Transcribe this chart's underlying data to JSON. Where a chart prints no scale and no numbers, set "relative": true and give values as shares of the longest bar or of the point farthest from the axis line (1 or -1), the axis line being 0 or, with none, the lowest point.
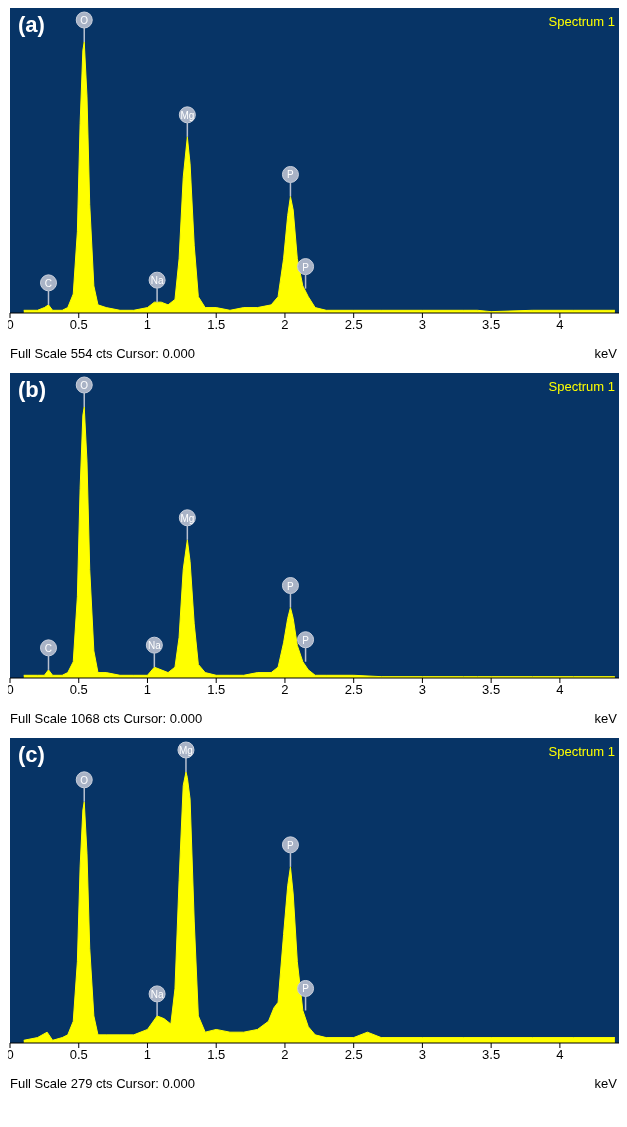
{
  "chart_data": [
    {
      "type": "area",
      "title": "(a)",
      "xlabel": "keV",
      "relative": true,
      "xlim": [
        0,
        4.43
      ],
      "xticks": [
        0,
        0.5,
        1,
        1.5,
        2,
        2.5,
        3,
        3.5,
        4
      ],
      "grid": false,
      "legend": false,
      "series": [
        {
          "color": "#ffff00",
          "x": [
            0.1,
            0.2,
            0.25,
            0.28,
            0.31,
            0.38,
            0.42,
            0.46,
            0.49,
            0.51,
            0.53,
            0.54,
            0.56,
            0.58,
            0.61,
            0.64,
            0.7,
            0.8,
            0.9,
            1.0,
            1.05,
            1.1,
            1.15,
            1.2,
            1.23,
            1.26,
            1.29,
            1.31,
            1.34,
            1.37,
            1.42,
            1.5,
            1.6,
            1.7,
            1.8,
            1.9,
            1.95,
            1.99,
            2.02,
            2.04,
            2.06,
            2.09,
            2.13,
            2.17,
            2.22,
            2.3,
            2.5,
            2.7,
            3.0,
            3.3,
            3.4,
            3.5,
            3.8,
            4.1,
            4.4
          ],
          "values": [
            0.01,
            0.01,
            0.02,
            0.03,
            0.01,
            0.01,
            0.02,
            0.07,
            0.3,
            0.7,
            0.97,
            1,
            0.8,
            0.4,
            0.1,
            0.03,
            0.02,
            0.01,
            0.01,
            0.02,
            0.04,
            0.04,
            0.03,
            0.05,
            0.2,
            0.5,
            0.65,
            0.55,
            0.25,
            0.06,
            0.02,
            0.02,
            0.01,
            0.02,
            0.02,
            0.03,
            0.06,
            0.2,
            0.36,
            0.43,
            0.38,
            0.2,
            0.1,
            0.06,
            0.02,
            0.01,
            0.01,
            0.01,
            0.01,
            0.01,
            0.01,
            0.005,
            0.01,
            0.01,
            0.01
          ]
        }
      ],
      "annotations": [
        "Spectrum 1",
        "Full Scale 554 cts Cursor: 0.000",
        {
          "text": "C",
          "x": 0.28,
          "y": 0.03
        },
        {
          "text": "O",
          "x": 0.54,
          "y": 1
        },
        {
          "text": "Na",
          "x": 1.07,
          "y": 0.04
        },
        {
          "text": "Mg",
          "x": 1.29,
          "y": 0.65
        },
        {
          "text": "P",
          "x": 2.04,
          "y": 0.43
        },
        {
          "text": "P",
          "x": 2.15,
          "y": 0.09
        }
      ]
    },
    {
      "type": "area",
      "title": "(b)",
      "xlabel": "keV",
      "relative": true,
      "xlim": [
        0,
        4.43
      ],
      "xticks": [
        0,
        0.5,
        1,
        1.5,
        2,
        2.5,
        3,
        3.5,
        4
      ],
      "grid": false,
      "legend": false,
      "series": [
        {
          "color": "#ffff00",
          "x": [
            0.1,
            0.2,
            0.25,
            0.28,
            0.31,
            0.38,
            0.42,
            0.46,
            0.49,
            0.51,
            0.53,
            0.54,
            0.56,
            0.58,
            0.61,
            0.64,
            0.7,
            0.8,
            0.9,
            1.0,
            1.05,
            1.1,
            1.15,
            1.2,
            1.23,
            1.26,
            1.29,
            1.31,
            1.34,
            1.37,
            1.42,
            1.5,
            1.6,
            1.7,
            1.8,
            1.9,
            1.95,
            1.99,
            2.02,
            2.04,
            2.06,
            2.09,
            2.13,
            2.17,
            2.22,
            2.3,
            2.5,
            2.7,
            3.0,
            3.3,
            3.4,
            3.5,
            3.8,
            4.1,
            4.4
          ],
          "values": [
            0.01,
            0.01,
            0.01,
            0.03,
            0.01,
            0.01,
            0.02,
            0.06,
            0.3,
            0.7,
            0.97,
            1,
            0.8,
            0.4,
            0.1,
            0.02,
            0.02,
            0.01,
            0.01,
            0.01,
            0.04,
            0.03,
            0.02,
            0.04,
            0.15,
            0.4,
            0.51,
            0.43,
            0.2,
            0.05,
            0.02,
            0.01,
            0.01,
            0.01,
            0.02,
            0.02,
            0.04,
            0.13,
            0.22,
            0.26,
            0.22,
            0.12,
            0.06,
            0.03,
            0.01,
            0.01,
            0.01,
            0.005,
            0.005,
            0.005,
            0.005,
            0.005,
            0.005,
            0.005,
            0.005
          ]
        }
      ],
      "annotations": [
        "Spectrum 1",
        "Full Scale 1068 cts Cursor: 0.000",
        {
          "text": "C",
          "x": 0.28,
          "y": 0.03
        },
        {
          "text": "O",
          "x": 0.54,
          "y": 1
        },
        {
          "text": "Na",
          "x": 1.05,
          "y": 0.04
        },
        {
          "text": "Mg",
          "x": 1.29,
          "y": 0.51
        },
        {
          "text": "P",
          "x": 2.04,
          "y": 0.26
        },
        {
          "text": "P",
          "x": 2.15,
          "y": 0.06
        }
      ]
    },
    {
      "type": "area",
      "title": "(c)",
      "xlabel": "keV",
      "relative": true,
      "xlim": [
        0,
        4.43
      ],
      "xticks": [
        0,
        0.5,
        1,
        1.5,
        2,
        2.5,
        3,
        3.5,
        4
      ],
      "grid": false,
      "legend": false,
      "series": [
        {
          "color": "#ffff00",
          "x": [
            0.1,
            0.2,
            0.27,
            0.31,
            0.38,
            0.42,
            0.46,
            0.49,
            0.51,
            0.53,
            0.54,
            0.56,
            0.58,
            0.61,
            0.64,
            0.7,
            0.8,
            0.9,
            1.0,
            1.07,
            1.12,
            1.17,
            1.2,
            1.23,
            1.26,
            1.28,
            1.29,
            1.31,
            1.34,
            1.37,
            1.42,
            1.5,
            1.6,
            1.7,
            1.8,
            1.88,
            1.92,
            1.95,
            1.99,
            2.02,
            2.04,
            2.06,
            2.09,
            2.13,
            2.17,
            2.22,
            2.3,
            2.5,
            2.6,
            2.7,
            3.0,
            3.3,
            3.5,
            3.8,
            4.1,
            4.4
          ],
          "values": [
            0.01,
            0.02,
            0.04,
            0.01,
            0.02,
            0.03,
            0.08,
            0.3,
            0.65,
            0.86,
            0.89,
            0.7,
            0.35,
            0.1,
            0.03,
            0.03,
            0.03,
            0.03,
            0.05,
            0.1,
            0.09,
            0.07,
            0.2,
            0.6,
            0.95,
            1,
            0.98,
            0.9,
            0.45,
            0.1,
            0.04,
            0.05,
            0.04,
            0.04,
            0.05,
            0.08,
            0.13,
            0.15,
            0.4,
            0.58,
            0.65,
            0.55,
            0.3,
            0.12,
            0.06,
            0.03,
            0.02,
            0.02,
            0.04,
            0.02,
            0.02,
            0.02,
            0.02,
            0.02,
            0.02,
            0.02
          ]
        }
      ],
      "annotations": [
        "Spectrum 1",
        "Full Scale 279 cts Cursor: 0.000",
        {
          "text": "O",
          "x": 0.54,
          "y": 0.89
        },
        {
          "text": "Na",
          "x": 1.07,
          "y": 0.1
        },
        {
          "text": "Mg",
          "x": 1.28,
          "y": 1
        },
        {
          "text": "P",
          "x": 2.04,
          "y": 0.65
        },
        {
          "text": "P",
          "x": 2.15,
          "y": 0.12
        }
      ]
    }
  ]
}
